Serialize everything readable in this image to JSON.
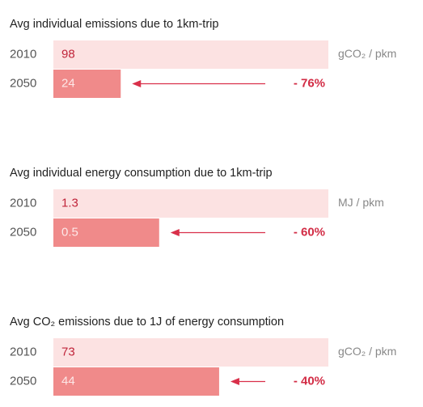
{
  "chart_data": [
    {
      "type": "bar",
      "title": "Avg individual emissions due to 1km-trip",
      "categories": [
        "2010",
        "2050"
      ],
      "values": [
        98,
        24
      ],
      "unit": "gCO₂ / pkm",
      "annotation": "- 76%",
      "colors": [
        "#fce2e2",
        "#f08a8a"
      ],
      "arrow_color": "#d9304a"
    },
    {
      "type": "bar",
      "title": "Avg individual energy consumption due to 1km-trip",
      "categories": [
        "2010",
        "2050"
      ],
      "values": [
        1.3,
        0.5
      ],
      "unit": "MJ / pkm",
      "annotation": "- 60%",
      "colors": [
        "#fce2e2",
        "#f08a8a"
      ],
      "arrow_color": "#d9304a"
    },
    {
      "type": "bar",
      "title": "Avg CO₂ emissions due to 1J of energy consumption",
      "categories": [
        "2010",
        "2050"
      ],
      "values": [
        73,
        44
      ],
      "unit": "gCO₂ / pkm",
      "annotation": "- 40%",
      "colors": [
        "#fce2e2",
        "#f08a8a"
      ],
      "arrow_color": "#d9304a"
    }
  ]
}
